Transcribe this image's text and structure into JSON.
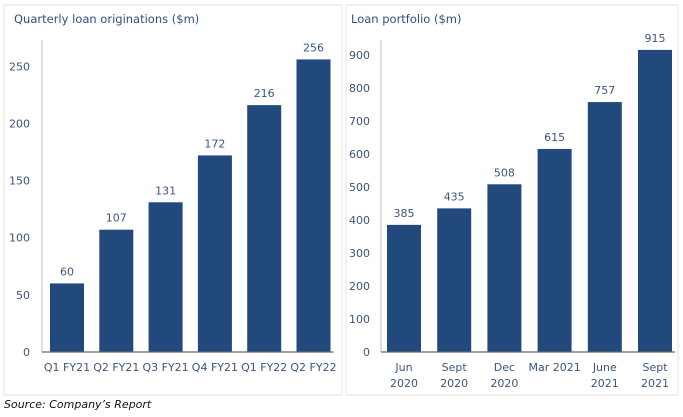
{
  "chart_data": [
    {
      "type": "bar",
      "title": "Quarterly loan originations ($m)",
      "categories": [
        "Q1 FY21",
        "Q2 FY21",
        "Q3 FY21",
        "Q4 FY21",
        "Q1 FY22",
        "Q2 FY22"
      ],
      "values": [
        60,
        107,
        131,
        172,
        216,
        256
      ],
      "yticks": [
        0,
        50,
        100,
        150,
        200,
        250
      ],
      "ylim": [
        0,
        273
      ],
      "xlabel": "",
      "ylabel": "",
      "bar_color": "#21497b"
    },
    {
      "type": "bar",
      "title": "Loan portfolio ($m)",
      "categories": [
        [
          "Jun",
          "2020"
        ],
        [
          "Sept",
          "2020"
        ],
        [
          "Dec",
          "2020"
        ],
        [
          "Mar 2021"
        ],
        [
          "June",
          "2021"
        ],
        [
          "Sept",
          "2021"
        ]
      ],
      "values": [
        385,
        435,
        508,
        615,
        757,
        915
      ],
      "yticks": [
        0,
        100,
        200,
        300,
        400,
        500,
        600,
        700,
        800,
        900
      ],
      "ylim": [
        0,
        945
      ],
      "xlabel": "",
      "ylabel": "",
      "bar_color": "#21497b"
    }
  ],
  "source": "Source: Company’s Report"
}
